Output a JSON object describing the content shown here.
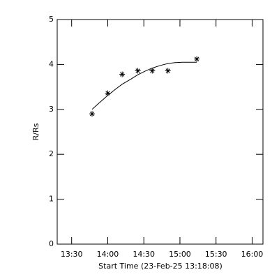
{
  "chart_data": {
    "type": "scatter",
    "xlabel": "Start Time (23-Feb-25 13:18:08)",
    "ylabel": "R/Rs",
    "x": [
      827,
      840,
      852,
      865,
      877,
      890,
      914
    ],
    "values": [
      2.9,
      3.36,
      3.78,
      3.86,
      3.86,
      3.86,
      4.12
    ],
    "color": "#000000",
    "fit": {
      "x": [
        827,
        834,
        840,
        846,
        852,
        859,
        865,
        871,
        877,
        884,
        890,
        896,
        902,
        908,
        914
      ],
      "values": [
        3.0,
        3.17,
        3.31,
        3.44,
        3.56,
        3.67,
        3.77,
        3.85,
        3.92,
        3.98,
        4.02,
        4.04,
        4.05,
        4.05,
        4.05
      ]
    },
    "xlim": [
      798,
      969
    ],
    "ylim": [
      0,
      5
    ],
    "xticks": [
      {
        "value": 810,
        "label": "13:30"
      },
      {
        "value": 840,
        "label": "14:00"
      },
      {
        "value": 870,
        "label": "14:30"
      },
      {
        "value": 900,
        "label": "15:00"
      },
      {
        "value": 930,
        "label": "15:30"
      },
      {
        "value": 960,
        "label": "16:00"
      }
    ],
    "yticks": [
      0,
      1,
      2,
      3,
      4,
      5
    ]
  }
}
